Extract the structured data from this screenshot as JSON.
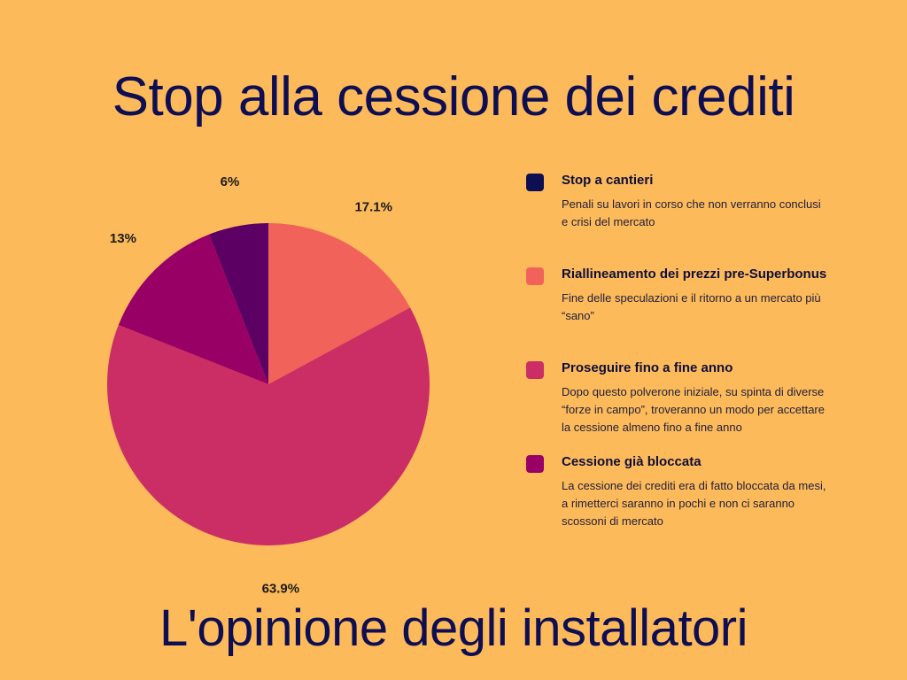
{
  "title": "Stop alla cessione dei crediti",
  "subtitle": "L'opinione degli installatori",
  "chart_data": {
    "type": "pie",
    "title": "Stop alla cessione dei crediti",
    "subtitle": "L'opinione degli installatori",
    "start_angle_deg": 0,
    "direction": "clockwise",
    "slices": [
      {
        "label": "Riallineamento dei prezzi pre-Superbonus",
        "value": 17.1,
        "display": "17.1%",
        "color": "#F0625A"
      },
      {
        "label": "Proseguire fino a fine anno",
        "value": 63.9,
        "display": "63.9%",
        "color": "#CB2E65"
      },
      {
        "label": "Cessione già bloccata",
        "value": 13,
        "display": "13%",
        "color": "#990066"
      },
      {
        "label": "Stop a cantieri",
        "value": 6,
        "display": "6%",
        "color": "#5D0063"
      }
    ],
    "legend_position": "right"
  },
  "legend": [
    {
      "title": "Stop a cantieri",
      "description": "Penali su lavori in corso che non verranno conclusi e crisi del mercato",
      "color": "#0E0E52"
    },
    {
      "title": "Riallineamento dei prezzi pre-Superbonus",
      "description": "Fine delle speculazioni e il ritorno a un mercato più “sano”",
      "color": "#F0625A"
    },
    {
      "title": "Proseguire fino a fine anno",
      "description": "Dopo questo polverone iniziale, su spinta di diverse “forze in campo”, troveranno un modo per accettare la cessione almeno fino a fine anno",
      "color": "#CB2E65"
    },
    {
      "title": "Cessione già bloccata",
      "description": "La cessione dei crediti era di fatto bloccata da mesi, a rimetterci saranno in pochi e non ci saranno scossoni di mercato",
      "color": "#990066"
    }
  ]
}
